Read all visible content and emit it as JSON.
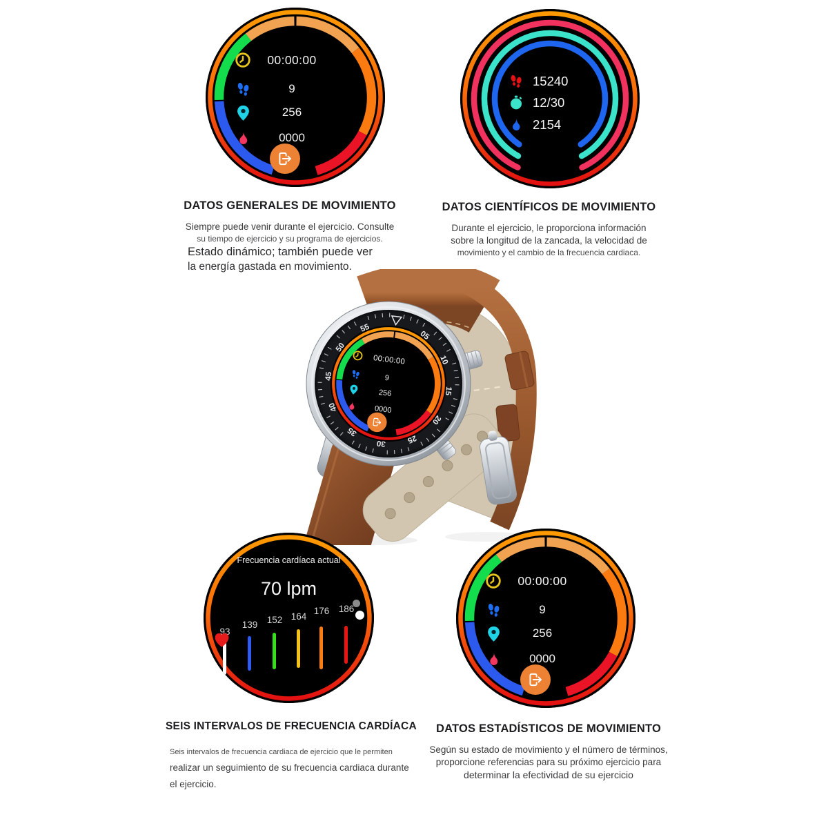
{
  "page": {
    "background": "#ffffff"
  },
  "sections": [
    {
      "title": "DATOS GENERALES DE MOVIMIENTO",
      "lines": [
        "Siempre puede venir durante el ejercicio. Consulte",
        "su tiempo de ejercicio y su programa de ejercicios.",
        "Estado dinámico; también puede ver",
        "la energía gastada en movimiento."
      ]
    },
    {
      "title": "DATOS CIENTÍFICOS DE MOVIMIENTO",
      "lines": [
        "Durante el ejercicio, le proporciona información",
        "sobre la longitud de la zancada, la velocidad de",
        "movimiento y el cambio de la frecuencia cardiaca."
      ]
    },
    {
      "title": "SEIS INTERVALOS DE FRECUENCIA CARDÍACA",
      "lines": [
        "Seis intervalos de frecuencia cardiaca de ejercicio que le permiten",
        "realizar un seguimiento de su frecuencia cardiaca durante",
        "el ejercicio."
      ]
    },
    {
      "title": "DATOS ESTADÍSTICOS DE MOVIMIENTO",
      "lines": [
        "Según su estado de movimiento y el número de términos,",
        "proporcione referencias para su próximo ejercicio para",
        "determinar la efectividad de su ejercicio"
      ]
    }
  ],
  "watch_faces": {
    "general": {
      "time": "00:00:00",
      "steps": "9",
      "distance": "256",
      "calories": "0000",
      "icons": [
        "clock-icon",
        "footprints-icon",
        "location-pin-icon",
        "flame-icon",
        "exit-icon"
      ]
    },
    "scientific": {
      "steps": "15240",
      "timer": "12/30",
      "calories": "2154",
      "icons": [
        "footprints-icon",
        "stopwatch-icon",
        "flame-icon"
      ]
    },
    "heart_rate": {
      "title": "Frecuencia cardíaca actual",
      "current_value": "70 lpm",
      "icon": "heart-icon",
      "zones": [
        {
          "label": "93",
          "color": "#ffffff"
        },
        {
          "label": "139",
          "color": "#2e5bf0"
        },
        {
          "label": "152",
          "color": "#35e01a"
        },
        {
          "label": "164",
          "color": "#f2c214"
        },
        {
          "label": "176",
          "color": "#fb7d10"
        },
        {
          "label": "186",
          "color": "#ec1413"
        }
      ]
    }
  },
  "watch_photo": {
    "bezel_numerals": [
      "05",
      "10",
      "15",
      "20",
      "25",
      "30",
      "35",
      "40",
      "45",
      "50",
      "55"
    ]
  },
  "colors": {
    "rim_orange": "#ff9a00",
    "rim_red": "#e31111",
    "segment_light_orange": "#f1a351",
    "segment_orange": "#fb7b10",
    "segment_red": "#eb1326",
    "segment_blue": "#2c59ee",
    "segment_green": "#14dd4d",
    "arc_pink": "#f2325e",
    "arc_teal": "#3ae3ca",
    "arc_blue": "#1e66f0",
    "icon_yellow": "#e6c41c",
    "icon_blue": "#1d6ef2",
    "icon_cyan": "#1fd2e6",
    "icon_pink": "#f4375f",
    "icon_red": "#e81010",
    "button_orange": "#ed8134",
    "strap_brown": "#9a592e"
  }
}
